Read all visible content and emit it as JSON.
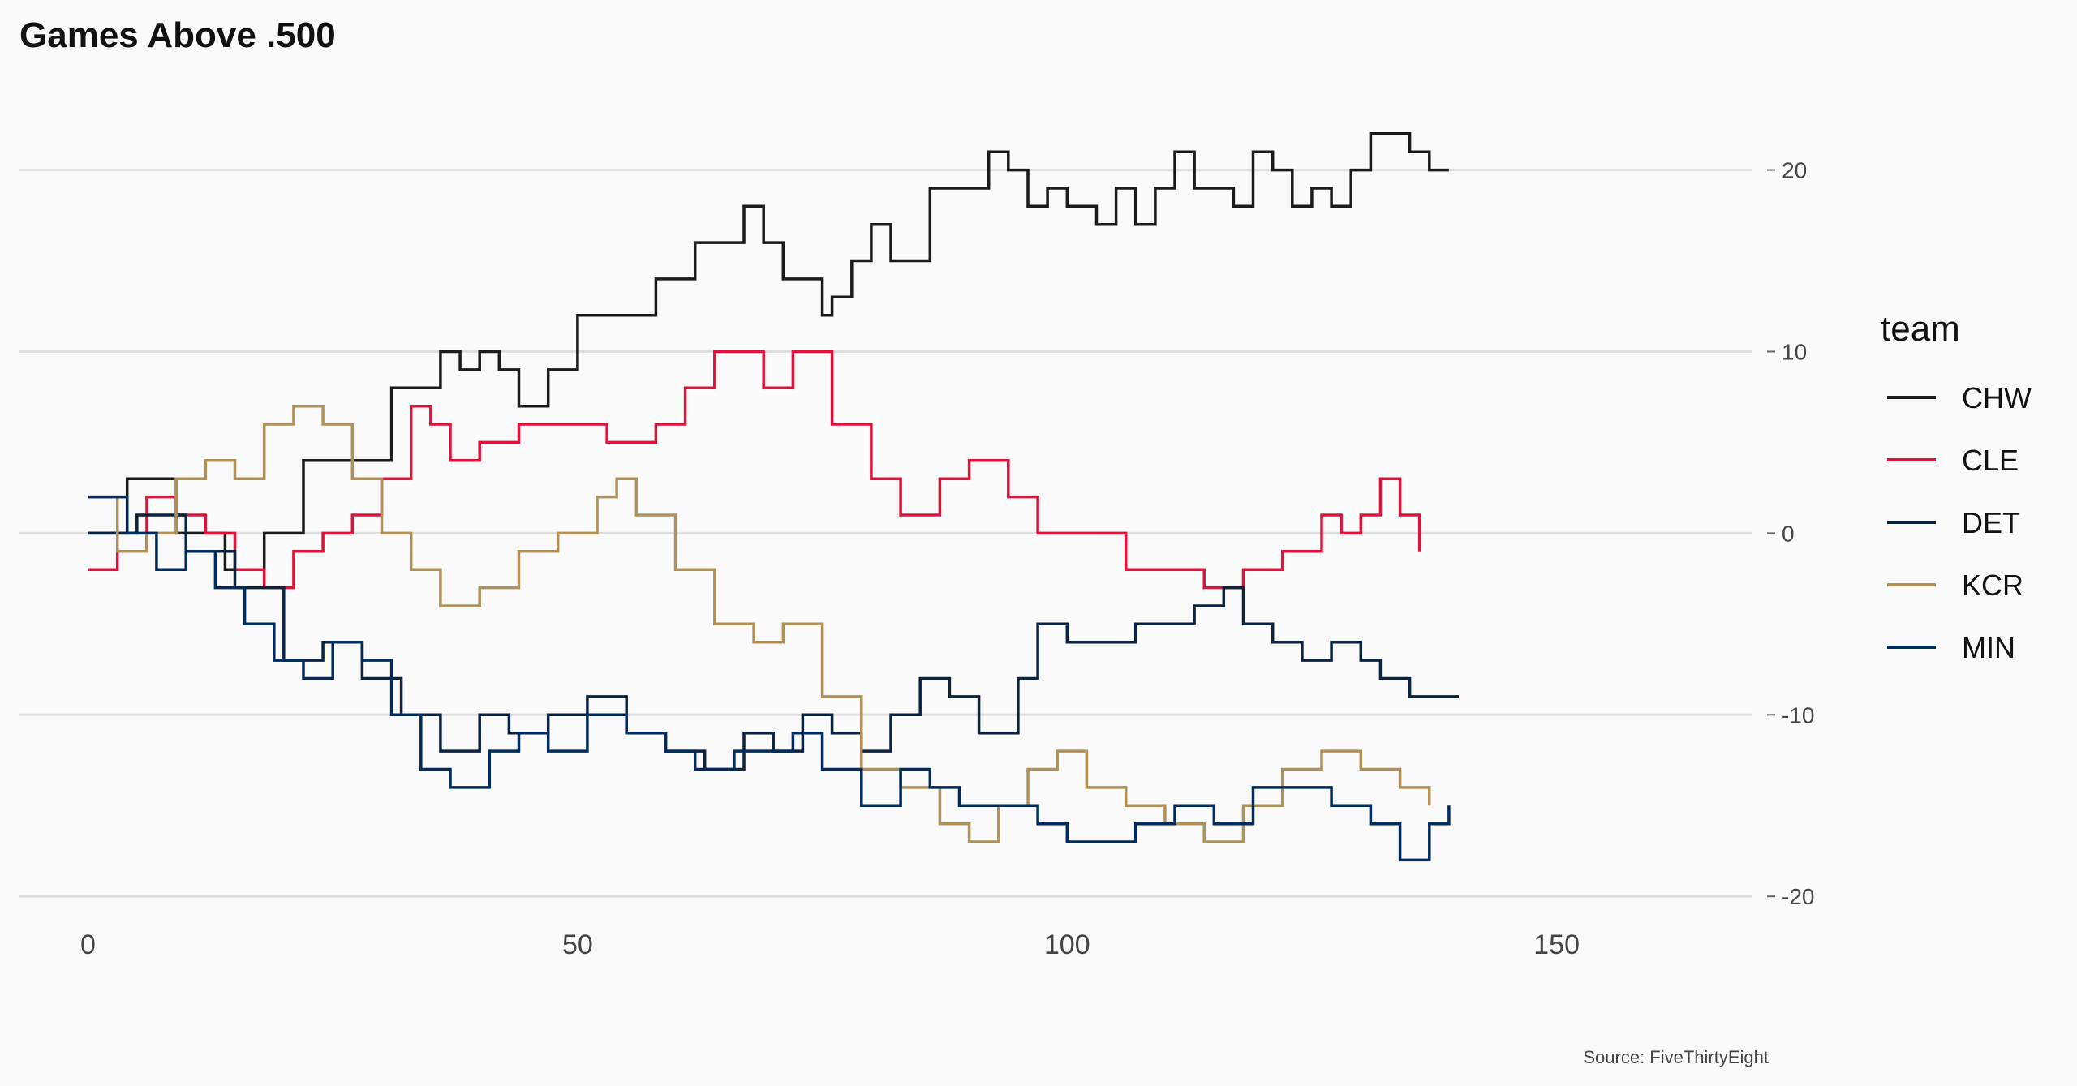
{
  "chart_data": {
    "type": "line",
    "step": true,
    "title": "Games Above .500",
    "xlabel": "",
    "ylabel": "",
    "caption": "Source: FiveThirtyEight",
    "xlim": [
      -7,
      170
    ],
    "ylim": [
      -22,
      24
    ],
    "x_ticks": [
      0,
      50,
      100,
      150
    ],
    "y_ticks": [
      -20,
      -10,
      0,
      10,
      20
    ],
    "y_axis_position": "right",
    "grid": "horizontal",
    "legend": {
      "title": "team",
      "position": "right"
    },
    "series": [
      {
        "name": "CHW",
        "color": "#1b1b1b",
        "x": [
          0,
          4,
          9,
          14,
          18,
          22,
          26,
          31,
          36,
          38,
          40,
          42,
          44,
          47,
          50,
          54,
          58,
          62,
          67,
          69,
          71,
          75,
          76,
          78,
          80,
          82,
          86,
          89,
          92,
          94,
          96,
          98,
          100,
          103,
          105,
          107,
          109,
          111,
          113,
          115,
          117,
          119,
          121,
          123,
          125,
          127,
          129,
          131,
          133,
          135,
          137,
          139
        ],
        "values": [
          0,
          3,
          0,
          -2,
          0,
          4,
          4,
          8,
          10,
          9,
          10,
          9,
          7,
          9,
          12,
          12,
          14,
          16,
          18,
          16,
          14,
          12,
          13,
          15,
          17,
          15,
          19,
          19,
          21,
          20,
          18,
          19,
          18,
          17,
          19,
          17,
          19,
          21,
          19,
          19,
          18,
          21,
          20,
          18,
          19,
          18,
          20,
          22,
          22,
          21,
          20,
          20
        ]
      },
      {
        "name": "CLE",
        "color": "#dc143c",
        "x": [
          0,
          3,
          6,
          9,
          12,
          15,
          18,
          21,
          24,
          27,
          30,
          33,
          35,
          37,
          40,
          44,
          48,
          53,
          58,
          61,
          64,
          66,
          69,
          72,
          76,
          80,
          83,
          87,
          90,
          94,
          97,
          102,
          106,
          110,
          114,
          118,
          122,
          126,
          128,
          130,
          132,
          134,
          136
        ],
        "values": [
          -2,
          -1,
          2,
          1,
          0,
          -2,
          -3,
          -1,
          0,
          1,
          3,
          7,
          6,
          4,
          5,
          6,
          6,
          5,
          6,
          8,
          10,
          10,
          8,
          10,
          6,
          3,
          1,
          3,
          4,
          2,
          0,
          0,
          -2,
          -2,
          -3,
          -2,
          -1,
          1,
          0,
          1,
          3,
          1,
          -1
        ]
      },
      {
        "name": "DET",
        "color": "#0c2340",
        "x": [
          0,
          5,
          10,
          15,
          20,
          24,
          28,
          32,
          36,
          40,
          43,
          47,
          51,
          55,
          59,
          63,
          67,
          70,
          73,
          76,
          79,
          82,
          85,
          88,
          91,
          95,
          97,
          100,
          104,
          107,
          110,
          113,
          116,
          118,
          121,
          124,
          127,
          130,
          132,
          135,
          138,
          140
        ],
        "values": [
          0,
          1,
          -1,
          -3,
          -7,
          -6,
          -8,
          -10,
          -12,
          -10,
          -11,
          -10,
          -9,
          -11,
          -12,
          -13,
          -11,
          -12,
          -10,
          -11,
          -12,
          -10,
          -8,
          -9,
          -11,
          -8,
          -5,
          -6,
          -6,
          -5,
          -5,
          -4,
          -3,
          -5,
          -6,
          -7,
          -6,
          -7,
          -8,
          -9,
          -9,
          -9
        ]
      },
      {
        "name": "KCR",
        "color": "#b09159",
        "x": [
          0,
          3,
          6,
          9,
          12,
          15,
          18,
          21,
          24,
          27,
          30,
          33,
          36,
          40,
          44,
          48,
          52,
          54,
          56,
          60,
          64,
          68,
          71,
          75,
          79,
          83,
          87,
          90,
          93,
          96,
          99,
          102,
          106,
          110,
          114,
          118,
          122,
          126,
          130,
          134,
          137
        ],
        "values": [
          2,
          -1,
          0,
          3,
          4,
          3,
          6,
          7,
          6,
          3,
          0,
          -2,
          -4,
          -3,
          -1,
          0,
          2,
          3,
          1,
          -2,
          -5,
          -6,
          -5,
          -9,
          -13,
          -14,
          -16,
          -17,
          -15,
          -13,
          -12,
          -14,
          -15,
          -16,
          -17,
          -15,
          -13,
          -12,
          -13,
          -14,
          -15
        ]
      },
      {
        "name": "MIN",
        "color": "#002b5c",
        "x": [
          0,
          4,
          7,
          10,
          13,
          16,
          19,
          22,
          25,
          28,
          31,
          34,
          37,
          41,
          44,
          47,
          51,
          55,
          59,
          62,
          66,
          69,
          72,
          75,
          79,
          83,
          86,
          89,
          93,
          97,
          100,
          104,
          107,
          111,
          115,
          119,
          123,
          127,
          131,
          134,
          137,
          139
        ],
        "values": [
          2,
          0,
          -2,
          -1,
          -3,
          -5,
          -7,
          -8,
          -6,
          -7,
          -10,
          -13,
          -14,
          -12,
          -11,
          -12,
          -10,
          -11,
          -12,
          -13,
          -12,
          -12,
          -11,
          -13,
          -15,
          -13,
          -14,
          -15,
          -15,
          -16,
          -17,
          -17,
          -16,
          -15,
          -16,
          -14,
          -14,
          -15,
          -16,
          -18,
          -16,
          -15
        ]
      }
    ]
  }
}
